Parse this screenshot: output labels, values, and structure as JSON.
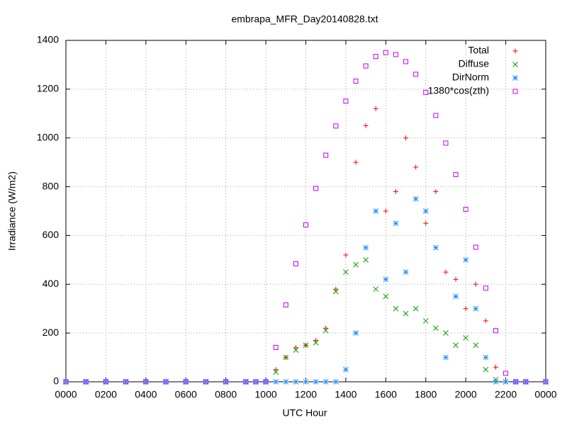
{
  "chart_data": {
    "type": "scatter",
    "title": "embrapa_MFR_Day20140828.txt",
    "x_label": "UTC Hour",
    "y_label": "Irradiance (W/m2)",
    "x": [
      0,
      1,
      2,
      3,
      4,
      5,
      6,
      7,
      8,
      9,
      9.5,
      10,
      10.5,
      11,
      11.5,
      12,
      12.5,
      13,
      13.5,
      14,
      14.5,
      15,
      15.5,
      16,
      16.5,
      17,
      17.5,
      18,
      18.5,
      19,
      19.5,
      20,
      20.5,
      21,
      21.5,
      22,
      22.5,
      23,
      24
    ],
    "series": [
      {
        "name": "Total",
        "color": "#ff0000",
        "marker": "plus",
        "values": [
          0,
          0,
          0,
          0,
          0,
          0,
          0,
          0,
          0,
          0,
          0,
          0,
          50,
          100,
          140,
          150,
          170,
          220,
          380,
          520,
          900,
          1050,
          1120,
          700,
          780,
          1000,
          880,
          650,
          780,
          450,
          420,
          300,
          400,
          250,
          60,
          0,
          0,
          0,
          0
        ]
      },
      {
        "name": "Diffuse",
        "color": "#00a000",
        "marker": "cross",
        "values": [
          0,
          0,
          0,
          0,
          0,
          0,
          0,
          0,
          0,
          0,
          0,
          0,
          40,
          100,
          130,
          150,
          160,
          210,
          370,
          450,
          480,
          500,
          380,
          350,
          300,
          280,
          300,
          250,
          220,
          200,
          150,
          180,
          150,
          50,
          10,
          0,
          0,
          0,
          0
        ]
      },
      {
        "name": "DirNorm",
        "color": "#1e90ff",
        "marker": "star",
        "values": [
          0,
          0,
          0,
          0,
          0,
          0,
          0,
          0,
          0,
          0,
          0,
          0,
          0,
          0,
          0,
          0,
          0,
          0,
          0,
          50,
          200,
          550,
          700,
          420,
          650,
          450,
          750,
          700,
          550,
          100,
          350,
          500,
          300,
          100,
          0,
          0,
          0,
          0,
          0
        ]
      },
      {
        "name": "1380*cos(zth)",
        "color": "#c000ff",
        "marker": "square",
        "values": [
          0,
          0,
          0,
          0,
          0,
          0,
          0,
          0,
          0,
          0,
          0,
          0,
          141,
          315,
          484,
          643,
          793,
          929,
          1049,
          1151,
          1233,
          1295,
          1334,
          1350,
          1342,
          1313,
          1261,
          1187,
          1092,
          979,
          850,
          707,
          552,
          384,
          210,
          35,
          0,
          0,
          0
        ]
      }
    ],
    "xlim": [
      0,
      24
    ],
    "ylim": [
      0,
      1400
    ],
    "xticks": [
      {
        "value": 0,
        "label": "0000"
      },
      {
        "value": 2,
        "label": "0200"
      },
      {
        "value": 4,
        "label": "0400"
      },
      {
        "value": 6,
        "label": "0600"
      },
      {
        "value": 8,
        "label": "0800"
      },
      {
        "value": 10,
        "label": "1000"
      },
      {
        "value": 12,
        "label": "1200"
      },
      {
        "value": 14,
        "label": "1400"
      },
      {
        "value": 16,
        "label": "1600"
      },
      {
        "value": 18,
        "label": "1800"
      },
      {
        "value": 20,
        "label": "2000"
      },
      {
        "value": 22,
        "label": "2200"
      },
      {
        "value": 24,
        "label": "0000"
      }
    ],
    "yticks": [
      0,
      200,
      400,
      600,
      800,
      1000,
      1200,
      1400
    ],
    "grid": true,
    "legend": "upper right"
  }
}
